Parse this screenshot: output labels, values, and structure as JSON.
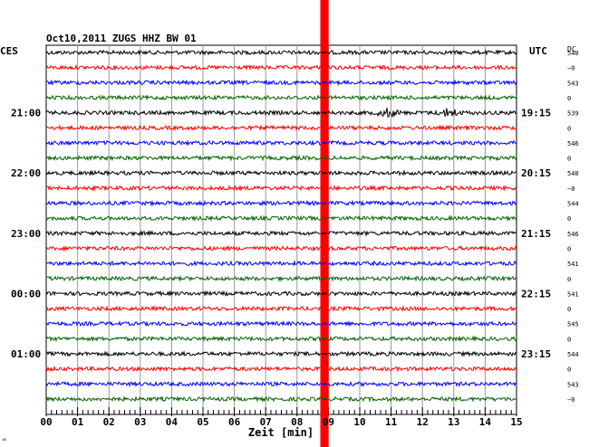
{
  "header": {
    "title": "Oct10,2011   ZUGS HHZ BW 01",
    "left_tz": "CES",
    "right_tz": "UTC",
    "dc_label": "DC"
  },
  "footer": {
    "xlabel": "Zeit [min]",
    "corner_mark": "ㅆ"
  },
  "colors": {
    "black": "#000000",
    "red": "#ff0000",
    "blue": "#0000ff",
    "green": "#006400",
    "event": "#ff0000",
    "grid": "#999999"
  },
  "chart_data": {
    "type": "line",
    "title": "Oct10,2011   ZUGS HHZ BW 01",
    "xlabel": "Zeit [min]",
    "xlim": [
      0,
      15
    ],
    "x_ticks": [
      "00",
      "01",
      "02",
      "03",
      "04",
      "05",
      "06",
      "07",
      "08",
      "09",
      "10",
      "11",
      "12",
      "13",
      "14",
      "15"
    ],
    "grid": true,
    "trace_colors": [
      "black",
      "red",
      "blue",
      "green"
    ],
    "traces": [
      {
        "local": "",
        "utc": "",
        "dc": "540",
        "color": "black"
      },
      {
        "local": "",
        "utc": "",
        "dc": "−0",
        "color": "red"
      },
      {
        "local": "",
        "utc": "",
        "dc": "543",
        "color": "blue"
      },
      {
        "local": "",
        "utc": "",
        "dc": "0",
        "color": "green"
      },
      {
        "local": "21:00",
        "utc": "19:15",
        "dc": "539",
        "color": "black"
      },
      {
        "local": "",
        "utc": "",
        "dc": "0",
        "color": "red"
      },
      {
        "local": "",
        "utc": "",
        "dc": "546",
        "color": "blue"
      },
      {
        "local": "",
        "utc": "",
        "dc": "0",
        "color": "green"
      },
      {
        "local": "22:00",
        "utc": "20:15",
        "dc": "540",
        "color": "black"
      },
      {
        "local": "",
        "utc": "",
        "dc": "−0",
        "color": "red"
      },
      {
        "local": "",
        "utc": "",
        "dc": "544",
        "color": "blue"
      },
      {
        "local": "",
        "utc": "",
        "dc": "0",
        "color": "green"
      },
      {
        "local": "23:00",
        "utc": "21:15",
        "dc": "546",
        "color": "black"
      },
      {
        "local": "",
        "utc": "",
        "dc": "0",
        "color": "red"
      },
      {
        "local": "",
        "utc": "",
        "dc": "541",
        "color": "blue"
      },
      {
        "local": "",
        "utc": "",
        "dc": "0",
        "color": "green"
      },
      {
        "local": "00:00",
        "utc": "22:15",
        "dc": "541",
        "color": "black"
      },
      {
        "local": "",
        "utc": "",
        "dc": "0",
        "color": "red"
      },
      {
        "local": "",
        "utc": "",
        "dc": "545",
        "color": "blue"
      },
      {
        "local": "",
        "utc": "",
        "dc": "0",
        "color": "green"
      },
      {
        "local": "01:00",
        "utc": "23:15",
        "dc": "544",
        "color": "black"
      },
      {
        "local": "",
        "utc": "",
        "dc": "0",
        "color": "red"
      },
      {
        "local": "",
        "utc": "",
        "dc": "543",
        "color": "blue"
      },
      {
        "local": "",
        "utc": "",
        "dc": "−0",
        "color": "green"
      }
    ],
    "event": {
      "minute_start": 8.8,
      "minute_end": 8.95,
      "color": "red"
    },
    "small_events": [
      {
        "trace": 4,
        "minute": 10.9
      },
      {
        "trace": 4,
        "minute": 12.85
      }
    ]
  }
}
